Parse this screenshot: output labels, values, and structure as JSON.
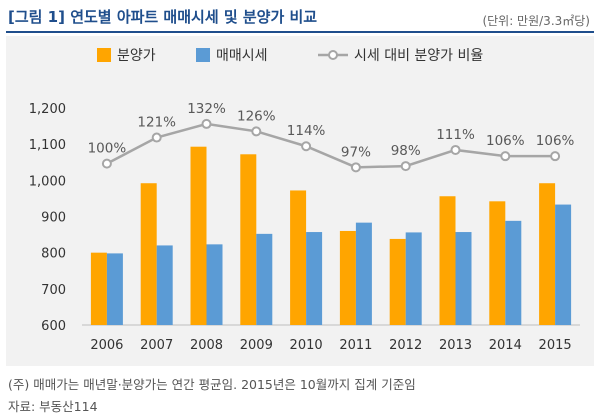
{
  "title": "[그림 1] 연도별 아파트 매매시세 및 분양가 비교",
  "unit_note": "(단위: 만원/3.3㎡당)",
  "footnote": "(주) 매매가는 매년말·분양가는 연간 평균임. 2015년은 10월까지 집계 기준임",
  "source": "자료: 부동산114",
  "colors": {
    "presale": "#ffa500",
    "market": "#5b9bd5",
    "ratio_line": "#a6a6a6",
    "title": "#1f4e8c"
  },
  "chart_data": {
    "type": "bar",
    "categories": [
      "2006",
      "2007",
      "2008",
      "2009",
      "2010",
      "2011",
      "2012",
      "2013",
      "2014",
      "2015"
    ],
    "series": [
      {
        "name": "분양가",
        "type": "bar",
        "values": [
          800,
          992,
          1093,
          1072,
          972,
          860,
          838,
          956,
          942,
          992
        ]
      },
      {
        "name": "매매시세",
        "type": "bar",
        "values": [
          798,
          820,
          823,
          852,
          857,
          883,
          856,
          857,
          888,
          933
        ]
      },
      {
        "name": "시세 대비 분양가 비율",
        "type": "line",
        "values": [
          100,
          121,
          132,
          126,
          114,
          97,
          98,
          111,
          106,
          106
        ],
        "labels": [
          "100%",
          "121%",
          "132%",
          "126%",
          "114%",
          "97%",
          "98%",
          "111%",
          "106%",
          "106%"
        ]
      }
    ],
    "ylim": [
      600,
      1200
    ],
    "yticks": [
      600,
      700,
      800,
      900,
      1000,
      1100,
      1200
    ],
    "ytick_labels": [
      "600",
      "700",
      "800",
      "900",
      "1,000",
      "1,100",
      "1,200"
    ],
    "legend_position": "top",
    "grid": false
  }
}
